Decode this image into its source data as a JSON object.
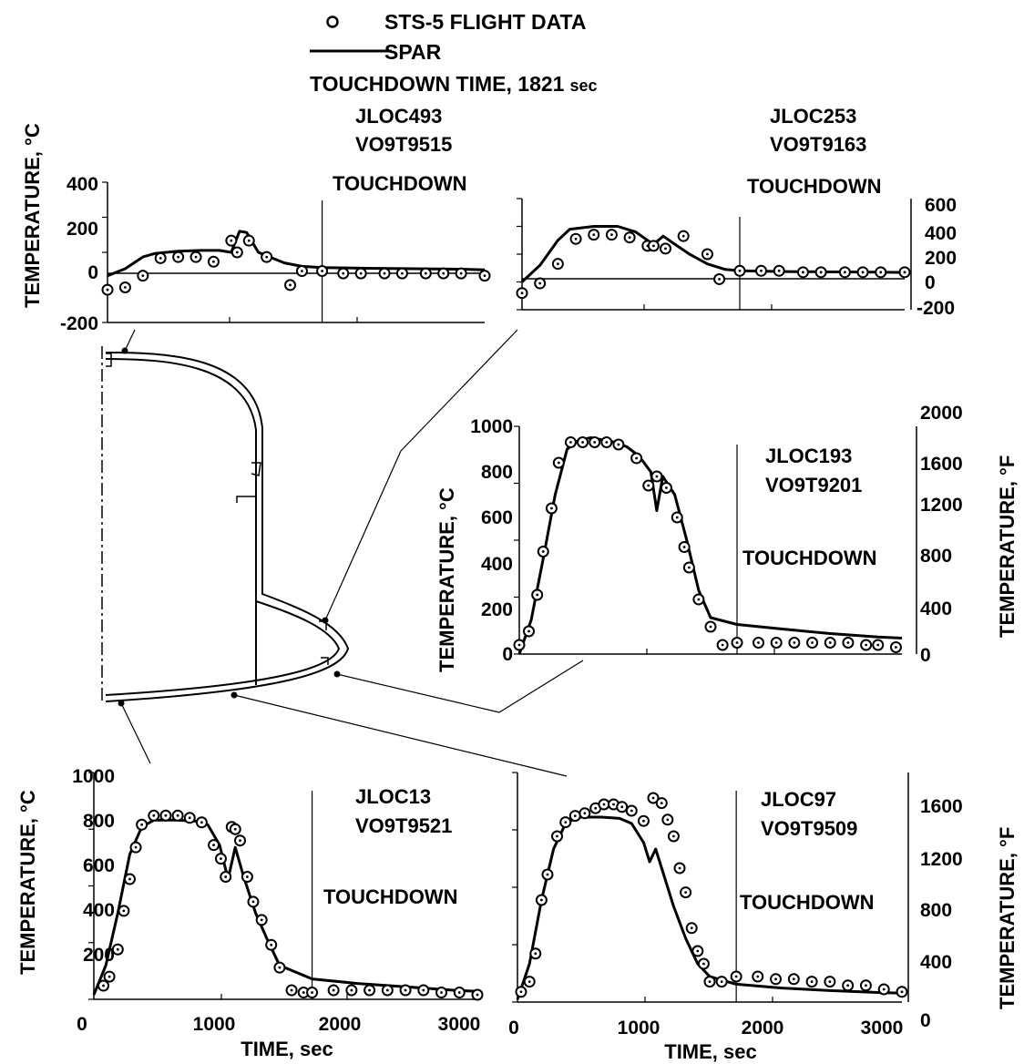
{
  "legend": {
    "flight_marker_label": "STS-5 FLIGHT DATA",
    "spar_label": "SPAR",
    "touchdown_note": "TOUCHDOWN TIME, 1821",
    "touchdown_note_unit": "sec"
  },
  "chart_data": [
    {
      "id": "p1",
      "type": "line",
      "location": "JLOC493",
      "sensor": "VO9T9515",
      "ylabel": "TEMPERATURE, °C",
      "xlim": [
        0,
        3200
      ],
      "ylim": [
        -200,
        400
      ],
      "yticks": [
        "400",
        "200",
        "0",
        "-200"
      ],
      "touchdown_label": "TOUCHDOWN",
      "touchdown_time": 1821,
      "series": [
        {
          "name": "SPAR",
          "type": "line",
          "x": [
            0,
            150,
            300,
            400,
            600,
            800,
            950,
            1050,
            1120,
            1180,
            1280,
            1500,
            1650,
            1821,
            2200,
            2600,
            3000,
            3200
          ],
          "y": [
            0,
            30,
            80,
            95,
            105,
            108,
            108,
            100,
            190,
            185,
            100,
            55,
            40,
            35,
            32,
            30,
            28,
            25
          ]
        },
        {
          "name": "STS-5 FLIGHT DATA",
          "type": "scatter",
          "x": [
            0,
            150,
            300,
            450,
            600,
            750,
            900,
            1050,
            1100,
            1200,
            1350,
            1550,
            1650,
            1821,
            2000,
            2150,
            2350,
            2500,
            2700,
            2850,
            3000,
            3200
          ],
          "y": [
            -60,
            -50,
            0,
            75,
            80,
            80,
            60,
            150,
            100,
            150,
            80,
            -40,
            20,
            20,
            10,
            10,
            10,
            10,
            10,
            10,
            10,
            0
          ]
        }
      ]
    },
    {
      "id": "p2",
      "type": "line",
      "location": "JLOC253",
      "sensor": "VO9T9163",
      "ylabel": "",
      "yunit_right": "°F",
      "xlim": [
        0,
        3200
      ],
      "ylim_right": [
        -200,
        600
      ],
      "yticks_right": [
        "600",
        "400",
        "200",
        "0",
        "-200"
      ],
      "touchdown_label": "TOUCHDOWN",
      "touchdown_time": 1821,
      "series": [
        {
          "name": "SPAR",
          "type": "line",
          "x": [
            0,
            150,
            300,
            400,
            600,
            800,
            950,
            1050,
            1100,
            1180,
            1280,
            1400,
            1550,
            1700,
            1821,
            2200,
            2600,
            3000,
            3200
          ],
          "y": [
            0,
            120,
            300,
            380,
            400,
            400,
            360,
            300,
            270,
            330,
            270,
            200,
            130,
            90,
            80,
            75,
            72,
            70,
            68
          ]
        },
        {
          "name": "STS-5 FLIGHT DATA",
          "type": "scatter",
          "x": [
            0,
            150,
            300,
            450,
            600,
            750,
            900,
            1050,
            1100,
            1200,
            1350,
            1550,
            1650,
            1821,
            2000,
            2150,
            2350,
            2500,
            2700,
            2850,
            3000,
            3200
          ],
          "y": [
            -80,
            -10,
            130,
            310,
            340,
            340,
            320,
            260,
            260,
            240,
            330,
            200,
            20,
            80,
            80,
            80,
            70,
            70,
            70,
            70,
            70,
            70
          ]
        }
      ]
    },
    {
      "id": "p3",
      "type": "line",
      "location": "JLOC193",
      "sensor": "VO9T9201",
      "ylabel": "TEMPERATURE, °C",
      "ylabel_right": "TEMPERATURE, °F",
      "xlim": [
        0,
        3200
      ],
      "ylim": [
        0,
        1000
      ],
      "ylim_right": [
        0,
        2000
      ],
      "yticks": [
        "1000",
        "800",
        "600",
        "400",
        "200",
        "0"
      ],
      "yticks_right": [
        "2000",
        "1600",
        "1200",
        "800",
        "400",
        "0"
      ],
      "touchdown_label": "TOUCHDOWN",
      "touchdown_time": 1821,
      "series": [
        {
          "name": "SPAR",
          "type": "line",
          "x": [
            0,
            100,
            200,
            300,
            400,
            500,
            600,
            700,
            800,
            900,
            1000,
            1100,
            1150,
            1200,
            1300,
            1400,
            1500,
            1600,
            1821,
            2200,
            2600,
            3000,
            3200
          ],
          "y": [
            0,
            150,
            420,
            700,
            900,
            940,
            950,
            940,
            930,
            910,
            870,
            800,
            630,
            780,
            700,
            500,
            280,
            160,
            130,
            110,
            90,
            75,
            70
          ]
        },
        {
          "name": "STS-5 FLIGHT DATA",
          "type": "scatter",
          "x": [
            0,
            80,
            150,
            200,
            270,
            330,
            430,
            530,
            630,
            730,
            830,
            980,
            1080,
            1150,
            1230,
            1320,
            1380,
            1420,
            1500,
            1600,
            1700,
            1821,
            2000,
            2150,
            2300,
            2450,
            2600,
            2750,
            2900,
            3000,
            3150
          ],
          "y": [
            40,
            100,
            260,
            450,
            640,
            840,
            930,
            930,
            930,
            930,
            920,
            860,
            740,
            780,
            730,
            600,
            470,
            380,
            240,
            120,
            40,
            50,
            50,
            50,
            50,
            50,
            50,
            50,
            40,
            40,
            30
          ]
        }
      ]
    },
    {
      "id": "p4",
      "type": "line",
      "location": "JLOC13",
      "sensor": "VO9T9521",
      "ylabel": "TEMPERATURE, °C",
      "xlabel": "TIME, sec",
      "xlim": [
        0,
        3200
      ],
      "ylim": [
        0,
        1000
      ],
      "xticks": [
        "0",
        "1000",
        "2000",
        "3000"
      ],
      "yticks": [
        "1000",
        "800",
        "600",
        "400",
        "200"
      ],
      "touchdown_label": "TOUCHDOWN",
      "touchdown_time": 1821,
      "series": [
        {
          "name": "SPAR",
          "type": "line",
          "x": [
            0,
            100,
            200,
            300,
            400,
            500,
            600,
            700,
            850,
            950,
            1050,
            1120,
            1180,
            1250,
            1350,
            1450,
            1550,
            1821,
            2200,
            2600,
            3000,
            3200
          ],
          "y": [
            20,
            150,
            380,
            640,
            760,
            790,
            790,
            790,
            785,
            770,
            680,
            530,
            670,
            540,
            380,
            260,
            150,
            90,
            70,
            55,
            40,
            35
          ]
        },
        {
          "name": "STS-5 FLIGHT DATA",
          "type": "scatter",
          "x": [
            80,
            130,
            200,
            250,
            300,
            350,
            400,
            500,
            600,
            700,
            800,
            900,
            1000,
            1060,
            1100,
            1150,
            1180,
            1220,
            1280,
            1330,
            1400,
            1480,
            1550,
            1650,
            1750,
            1821,
            2000,
            2150,
            2300,
            2450,
            2600,
            2750,
            2900,
            3050,
            3200
          ],
          "y": [
            60,
            100,
            220,
            390,
            530,
            670,
            770,
            810,
            810,
            810,
            800,
            780,
            680,
            620,
            540,
            760,
            750,
            700,
            540,
            430,
            350,
            240,
            140,
            40,
            30,
            30,
            40,
            40,
            40,
            40,
            40,
            40,
            30,
            30,
            20
          ]
        }
      ]
    },
    {
      "id": "p5",
      "type": "line",
      "location": "JLOC97",
      "sensor": "VO9T9509",
      "ylabel_right": "TEMPERATURE, °F",
      "xlabel": "TIME, sec",
      "xlim": [
        0,
        3200
      ],
      "ylim_right": [
        0,
        1800
      ],
      "xticks": [
        "0",
        "1000",
        "2000",
        "3000"
      ],
      "yticks_right": [
        "1600",
        "1200",
        "800",
        "400",
        "0"
      ],
      "touchdown_label": "TOUCHDOWN",
      "touchdown_time": 1821,
      "series": [
        {
          "name": "SPAR",
          "type": "line",
          "x": [
            0,
            100,
            200,
            300,
            400,
            500,
            600,
            700,
            850,
            950,
            1050,
            1100,
            1150,
            1200,
            1300,
            1400,
            1500,
            1600,
            1821,
            2200,
            2600,
            3000,
            3200
          ],
          "y": [
            20,
            300,
            800,
            1200,
            1400,
            1450,
            1450,
            1450,
            1440,
            1400,
            1250,
            1100,
            1200,
            1050,
            750,
            500,
            300,
            200,
            140,
            110,
            90,
            75,
            70
          ]
        },
        {
          "name": "STS-5 FLIGHT DATA",
          "type": "scatter",
          "x": [
            30,
            100,
            150,
            200,
            250,
            330,
            400,
            480,
            560,
            650,
            720,
            800,
            870,
            950,
            1050,
            1130,
            1200,
            1250,
            1300,
            1350,
            1400,
            1450,
            1500,
            1550,
            1600,
            1700,
            1821,
            2000,
            2150,
            2300,
            2450,
            2600,
            2750,
            2900,
            3050,
            3200
          ],
          "y": [
            80,
            160,
            380,
            800,
            1000,
            1300,
            1410,
            1460,
            1480,
            1520,
            1550,
            1550,
            1530,
            1500,
            1420,
            1600,
            1560,
            1430,
            1300,
            1050,
            860,
            580,
            400,
            300,
            160,
            160,
            200,
            200,
            180,
            180,
            160,
            160,
            130,
            130,
            100,
            80
          ]
        }
      ]
    }
  ]
}
